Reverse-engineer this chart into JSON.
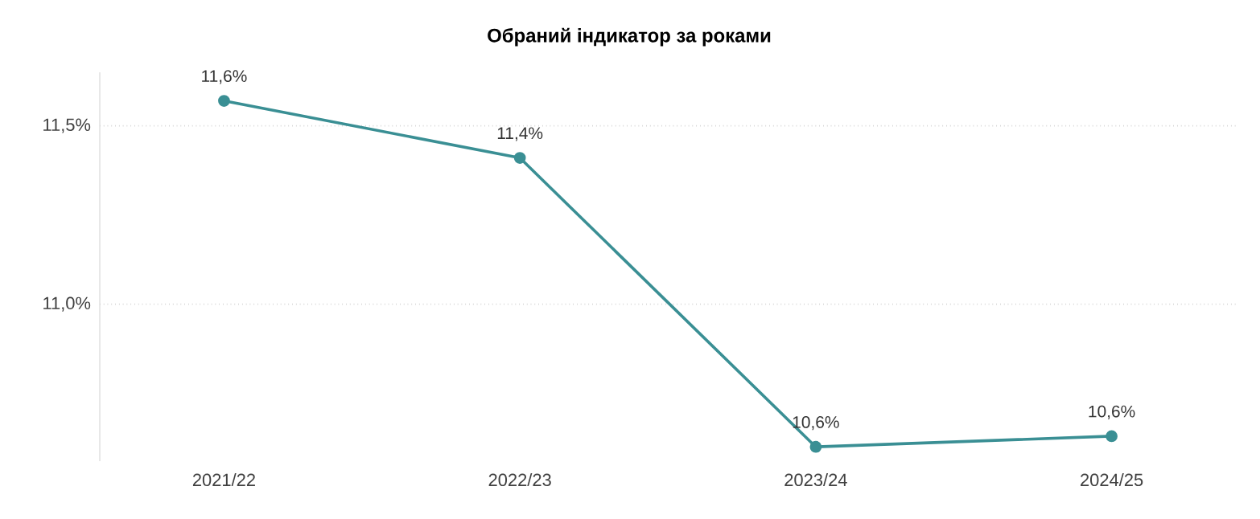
{
  "chart_data": {
    "type": "line",
    "title": "Обраний індикатор за роками",
    "categories": [
      "2021/22",
      "2022/23",
      "2023/24",
      "2024/25"
    ],
    "series": [
      {
        "color": "#3a8f94",
        "values": [
          11.57,
          11.41,
          10.6,
          10.63
        ],
        "value_labels": [
          "11,6%",
          "11,4%",
          "10,6%",
          "10,6%"
        ]
      }
    ],
    "yticks": [
      {
        "value": 11.0,
        "label": "11,0%"
      },
      {
        "value": 11.5,
        "label": "11,5%"
      }
    ],
    "ylim": [
      10.56,
      11.65
    ],
    "grid": "y",
    "marker": "circle",
    "line_style": "solid"
  }
}
